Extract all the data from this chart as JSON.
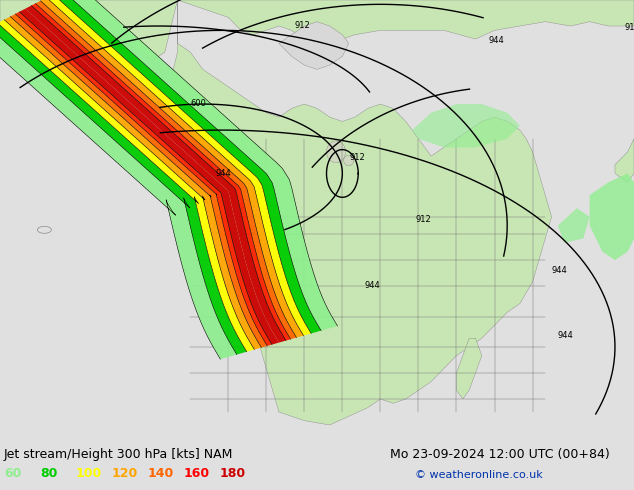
{
  "title_left": "Jet stream/Height 300 hPa [kts] NAM",
  "title_right": "Mo 23-09-2024 12:00 UTC (00+84)",
  "copyright": "© weatheronline.co.uk",
  "legend_values": [
    60,
    80,
    100,
    120,
    140,
    160,
    180
  ],
  "legend_colors": [
    "#90ee90",
    "#00cc00",
    "#ffff00",
    "#ffa500",
    "#ff6600",
    "#ff0000",
    "#cc0000"
  ],
  "bg_color": "#e0e0e0",
  "ocean_color": "#e0e0e0",
  "land_color_light": "#c8e6b4",
  "land_color_us": "#c8dfa0",
  "grid_color": "#808080",
  "contour_color": "#000000",
  "bottom_bar_color": "#c8c8c8",
  "font_size_title": 9,
  "font_size_legend": 9,
  "font_size_copyright": 8,
  "font_size_label": 6.5
}
